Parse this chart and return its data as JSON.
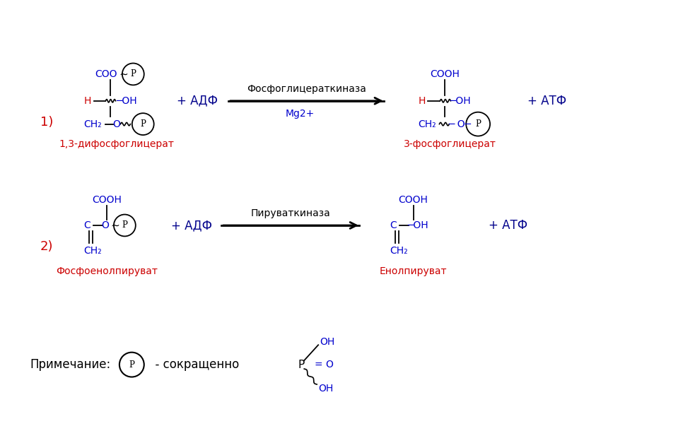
{
  "bg_color": "#ffffff",
  "black": "#000000",
  "blue": "#0000cd",
  "red": "#cc0000",
  "darkblue": "#00008b",
  "reaction1_number": "1)",
  "reaction1_adp": "+ АДФ",
  "reaction1_enzyme": "Фосфоглицераткиназа",
  "reaction1_cofactor": "Mg2+",
  "reaction1_atp": "+ АТФ",
  "reaction1_substrate_label": "1,3-дифосфоглицерат",
  "reaction1_product_label": "3-фосфоглицерат",
  "reaction2_number": "2)",
  "reaction2_adp": "+ АДФ",
  "reaction2_enzyme": "Пируваткиназа",
  "reaction2_atp": "+ АТФ",
  "reaction2_substrate_label": "Фосфоенолпируват",
  "reaction2_product_label": "Енолпируват",
  "note_label": "Примечание:",
  "note_p_label": "P",
  "note_circle_label": "  - сокращенно"
}
